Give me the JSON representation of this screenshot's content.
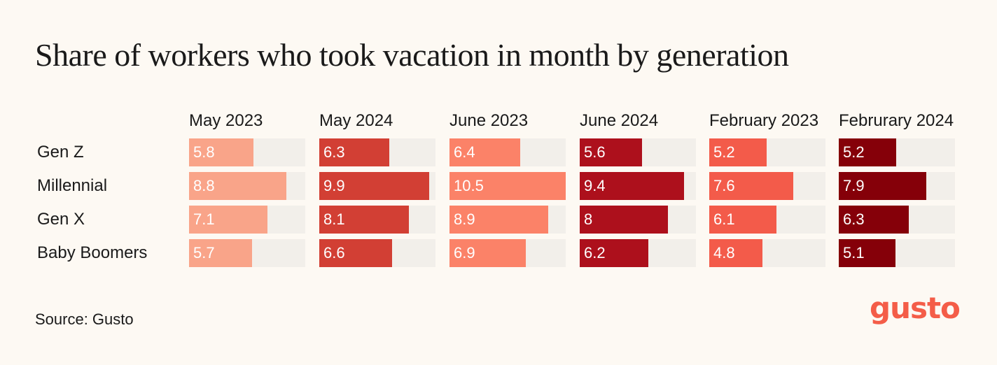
{
  "chart_data": {
    "type": "bar",
    "title": "Share of workers who took vacation in month by generation",
    "categories": [
      "Gen Z",
      "Millennial",
      "Gen X",
      "Baby Boomers"
    ],
    "series": [
      {
        "name": "May 2023",
        "values": [
          5.8,
          8.8,
          7.1,
          5.7
        ],
        "color": "#f9a489"
      },
      {
        "name": "May 2024",
        "values": [
          6.3,
          9.9,
          8.1,
          6.6
        ],
        "color": "#d23f34"
      },
      {
        "name": "June 2023",
        "values": [
          6.4,
          10.5,
          8.9,
          6.9
        ],
        "color": "#fb8268"
      },
      {
        "name": "June 2024",
        "values": [
          5.6,
          9.4,
          8,
          6.2
        ],
        "color": "#ad101c"
      },
      {
        "name": "February 2023",
        "values": [
          5.2,
          7.6,
          6.1,
          4.8
        ],
        "color": "#f35b4a"
      },
      {
        "name": "Februrary 2024",
        "values": [
          5.2,
          7.9,
          6.3,
          5.1
        ],
        "color": "#850009"
      }
    ],
    "xlim": [
      0,
      10.5
    ],
    "source": "Source: Gusto"
  },
  "brand": {
    "logo_text": "gusto",
    "logo_color": "#f45d48"
  },
  "colors": {
    "background": "#fdf9f3",
    "track": "#f2efea"
  }
}
